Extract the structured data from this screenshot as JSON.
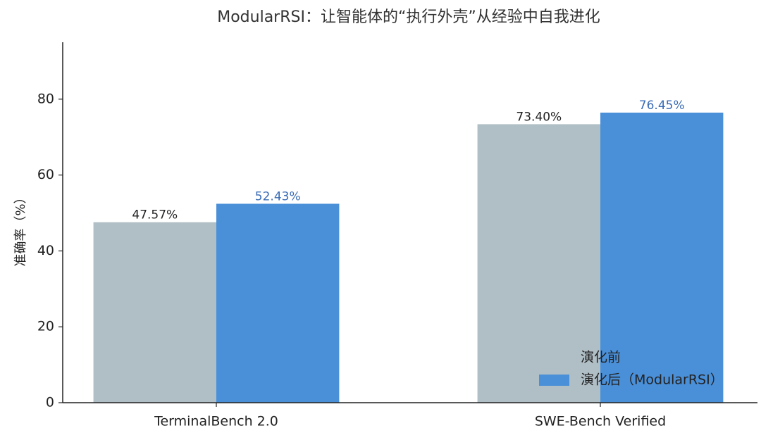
{
  "chart_data": {
    "type": "bar",
    "title": "ModularRSI：让智能体的“执行外壳”从经验中自我进化",
    "ylabel": "准确率（%）",
    "categories": [
      "TerminalBench 2.0",
      "SWE-Bench Verified"
    ],
    "series": [
      {
        "name": "演化前",
        "color": "#b0bec5",
        "label_color": "#222222",
        "values": [
          47.57,
          73.4
        ],
        "value_labels": [
          "47.57%",
          "73.40%"
        ]
      },
      {
        "name": "演化后（ModularRSI）",
        "color": "#4a90d9",
        "label_color": "#3a6cb5",
        "values": [
          52.43,
          76.45
        ],
        "value_labels": [
          "52.43%",
          "76.45%"
        ]
      }
    ],
    "ylim": [
      0,
      95
    ],
    "yticks": [
      0,
      20,
      40,
      60,
      80
    ],
    "legend": "lower right"
  }
}
